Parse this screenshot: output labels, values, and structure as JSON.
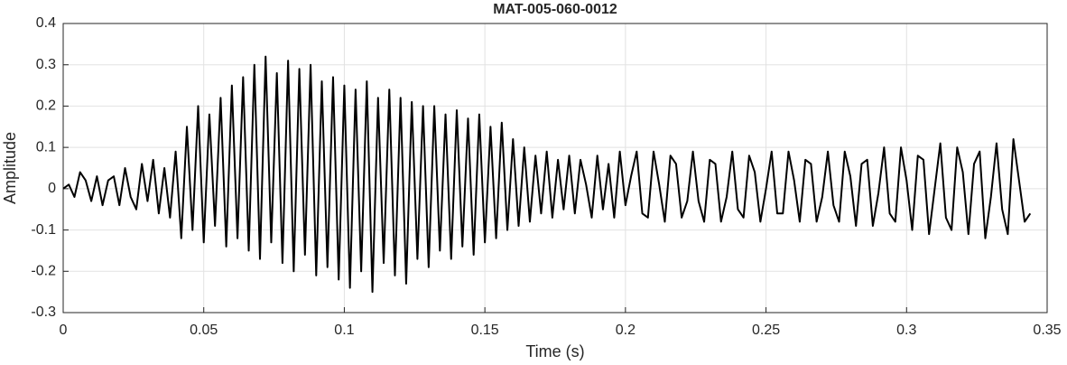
{
  "chart_data": {
    "type": "line",
    "title": "MAT-005-060-0012",
    "x_label": "Time (s)",
    "y_label": "Amplitude",
    "x": [
      0,
      0.002,
      0.004,
      0.006,
      0.008,
      0.01,
      0.012,
      0.014,
      0.016,
      0.018,
      0.02,
      0.022,
      0.024,
      0.026,
      0.028,
      0.03,
      0.032,
      0.034,
      0.036,
      0.038,
      0.04,
      0.042,
      0.044,
      0.046,
      0.048,
      0.05,
      0.052,
      0.054,
      0.056,
      0.058,
      0.06,
      0.062,
      0.064,
      0.066,
      0.068,
      0.07,
      0.072,
      0.074,
      0.076,
      0.078,
      0.08,
      0.082,
      0.084,
      0.086,
      0.088,
      0.09,
      0.092,
      0.094,
      0.096,
      0.098,
      0.1,
      0.102,
      0.104,
      0.106,
      0.108,
      0.11,
      0.112,
      0.114,
      0.116,
      0.118,
      0.12,
      0.122,
      0.124,
      0.126,
      0.128,
      0.13,
      0.132,
      0.134,
      0.136,
      0.138,
      0.14,
      0.142,
      0.144,
      0.146,
      0.148,
      0.15,
      0.152,
      0.154,
      0.156,
      0.158,
      0.16,
      0.162,
      0.164,
      0.166,
      0.168,
      0.17,
      0.172,
      0.174,
      0.176,
      0.178,
      0.18,
      0.182,
      0.184,
      0.186,
      0.188,
      0.19,
      0.192,
      0.194,
      0.196,
      0.198,
      0.2,
      0.202,
      0.204,
      0.206,
      0.208,
      0.21,
      0.212,
      0.214,
      0.216,
      0.218,
      0.22,
      0.222,
      0.224,
      0.226,
      0.228,
      0.23,
      0.232,
      0.234,
      0.236,
      0.238,
      0.24,
      0.242,
      0.244,
      0.246,
      0.248,
      0.25,
      0.252,
      0.254,
      0.256,
      0.258,
      0.26,
      0.262,
      0.264,
      0.266,
      0.268,
      0.27,
      0.272,
      0.274,
      0.276,
      0.278,
      0.28,
      0.282,
      0.284,
      0.286,
      0.288,
      0.29,
      0.292,
      0.294,
      0.296,
      0.298,
      0.3,
      0.302,
      0.304,
      0.306,
      0.308,
      0.31,
      0.312,
      0.314,
      0.316,
      0.318,
      0.32,
      0.322,
      0.324,
      0.326,
      0.328,
      0.33,
      0.332,
      0.334,
      0.336,
      0.338,
      0.34,
      0.342,
      0.344
    ],
    "values": [
      0,
      0.01,
      -0.02,
      0.04,
      0.02,
      -0.03,
      0.03,
      -0.04,
      0.02,
      0.03,
      -0.04,
      0.05,
      -0.02,
      -0.05,
      0.06,
      -0.03,
      0.07,
      -0.06,
      0.05,
      -0.07,
      0.09,
      -0.12,
      0.15,
      -0.1,
      0.2,
      -0.13,
      0.18,
      -0.09,
      0.22,
      -0.14,
      0.25,
      -0.12,
      0.27,
      -0.15,
      0.3,
      -0.17,
      0.32,
      -0.13,
      0.28,
      -0.18,
      0.31,
      -0.2,
      0.29,
      -0.16,
      0.3,
      -0.21,
      0.26,
      -0.19,
      0.27,
      -0.22,
      0.25,
      -0.24,
      0.24,
      -0.2,
      0.26,
      -0.25,
      0.22,
      -0.18,
      0.24,
      -0.21,
      0.22,
      -0.23,
      0.21,
      -0.17,
      0.2,
      -0.19,
      0.2,
      -0.15,
      0.18,
      -0.17,
      0.19,
      -0.14,
      0.17,
      -0.16,
      0.18,
      -0.13,
      0.15,
      -0.12,
      0.16,
      -0.1,
      0.12,
      -0.09,
      0.1,
      -0.08,
      0.08,
      -0.06,
      0.09,
      -0.07,
      0.07,
      -0.05,
      0.08,
      -0.06,
      0.07,
      0.01,
      -0.07,
      0.08,
      -0.05,
      0.06,
      -0.07,
      0.09,
      -0.04,
      0.03,
      0.09,
      -0.06,
      -0.07,
      0.09,
      0.01,
      -0.08,
      0.08,
      0.06,
      -0.07,
      -0.03,
      0.09,
      -0.03,
      -0.08,
      0.07,
      0.06,
      -0.08,
      -0.02,
      0.09,
      -0.05,
      -0.07,
      0.08,
      0.04,
      -0.08,
      0,
      0.09,
      -0.06,
      -0.06,
      0.09,
      0.02,
      -0.08,
      0.07,
      0.06,
      -0.08,
      -0.02,
      0.09,
      -0.04,
      -0.08,
      0.09,
      0.03,
      -0.09,
      0.06,
      0.07,
      -0.09,
      -0.01,
      0.1,
      -0.06,
      -0.08,
      0.1,
      0.02,
      -0.1,
      0.08,
      0.07,
      -0.11,
      0,
      0.11,
      -0.07,
      -0.1,
      0.1,
      0.04,
      -0.11,
      0.06,
      0.09,
      -0.12,
      -0.02,
      0.11,
      -0.05,
      -0.11,
      0.12,
      0.02,
      -0.08,
      -0.06
    ],
    "color": "#000000",
    "xlim": [
      0,
      0.35
    ],
    "xticks": [
      0,
      0.05,
      0.1,
      0.15,
      0.2,
      0.25,
      0.3,
      0.35
    ],
    "ylim": [
      -0.3,
      0.4
    ],
    "yticks": [
      -0.3,
      -0.2,
      -0.1,
      0,
      0.1,
      0.2,
      0.3,
      0.4
    ],
    "grid": true
  }
}
